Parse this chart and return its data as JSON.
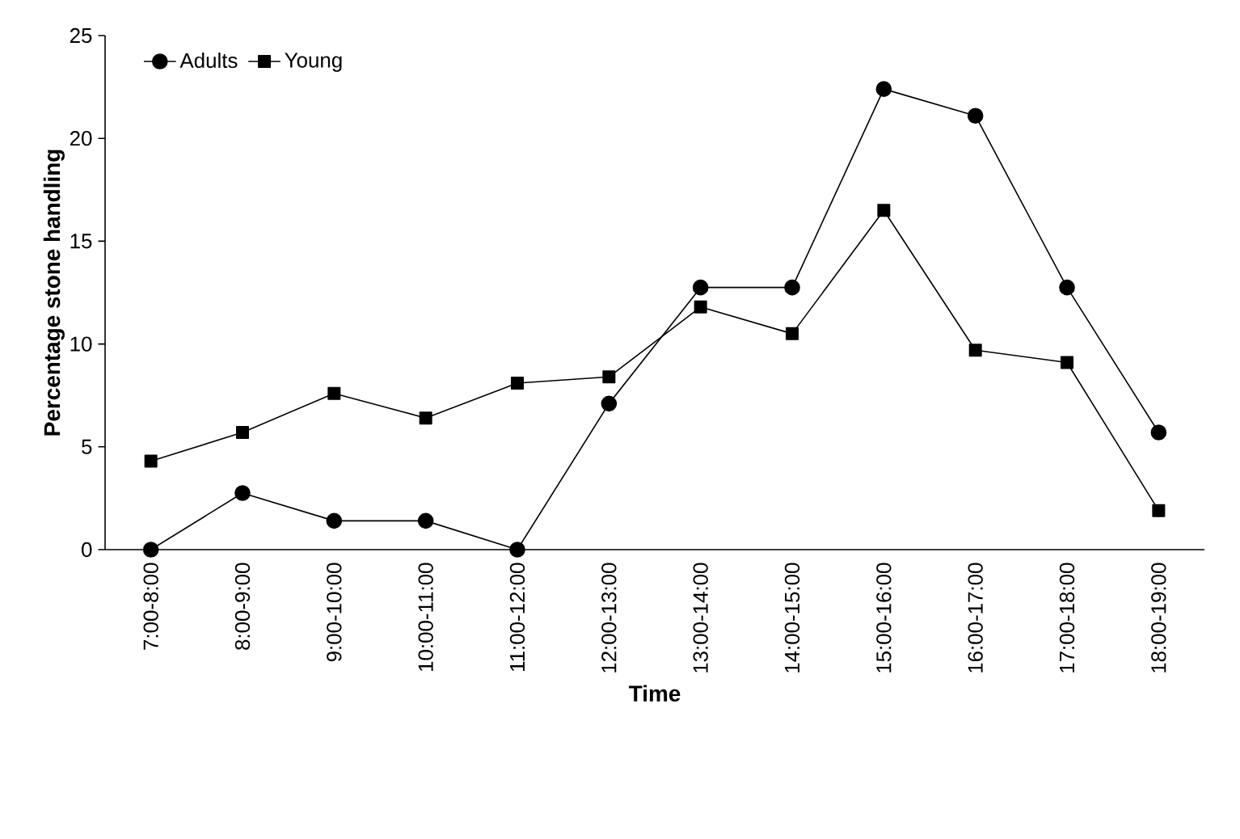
{
  "chart_data": {
    "type": "line",
    "xlabel": "Time",
    "ylabel": "Percentage stone handling",
    "categories": [
      "7:00-8:00",
      "8:00-9:00",
      "9:00-10:00",
      "10:00-11:00",
      "11:00-12:00",
      "12:00-13:00",
      "13:00-14:00",
      "14:00-15:00",
      "15:00-16:00",
      "16:00-17:00",
      "17:00-18:00",
      "18:00-19:00"
    ],
    "series": [
      {
        "name": "Adults",
        "color": "#000000",
        "marker": "circle",
        "values": [
          0,
          2.75,
          1.4,
          1.4,
          0,
          7.1,
          12.75,
          12.75,
          22.4,
          21.1,
          12.75,
          5.7
        ]
      },
      {
        "name": "Young",
        "color": "#000000",
        "marker": "square",
        "values": [
          4.3,
          5.7,
          7.6,
          6.4,
          8.1,
          8.4,
          11.8,
          10.5,
          16.5,
          9.7,
          9.1,
          1.9
        ]
      }
    ],
    "ylim": [
      0,
      25
    ],
    "yticks": [
      0,
      5,
      10,
      15,
      20,
      25
    ],
    "grid": false,
    "legend": "top left",
    "line_style": "solid"
  }
}
